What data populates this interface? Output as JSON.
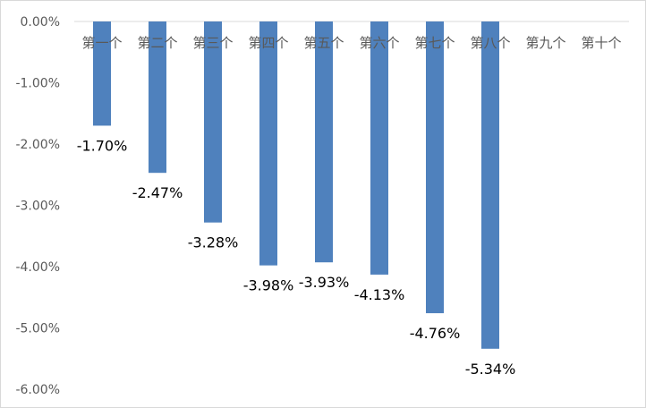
{
  "chart_data": {
    "type": "bar",
    "categories": [
      "第一个",
      "第二个",
      "第三个",
      "第四个",
      "第五个",
      "第六个",
      "第七个",
      "第八个",
      "第九个",
      "第十个"
    ],
    "values": [
      -1.7,
      -2.47,
      -3.28,
      -3.98,
      -3.93,
      -4.13,
      -4.76,
      -5.34,
      null,
      null
    ],
    "data_labels": [
      "-1.70%",
      "-2.47%",
      "-3.28%",
      "-3.98%",
      "-3.93%",
      "-4.13%",
      "-4.76%",
      "-5.34%",
      "",
      ""
    ],
    "y_ticks": [
      "0.00%",
      "-1.00%",
      "-2.00%",
      "-3.00%",
      "-4.00%",
      "-5.00%",
      "-6.00%"
    ],
    "ylim": [
      -6,
      0
    ],
    "bar_color": "#4f81bd",
    "grid": false,
    "legend": "none"
  }
}
